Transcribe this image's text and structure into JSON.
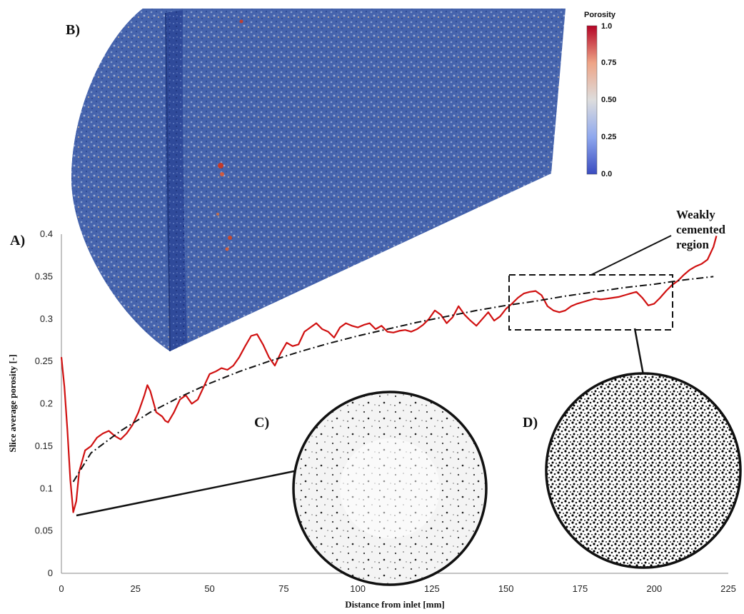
{
  "chart_data": {
    "type": "line",
    "xlabel": "Distance from inlet [mm]",
    "ylabel": "Slice average porosity [-]",
    "xlim": [
      0,
      225
    ],
    "ylim": [
      0,
      0.4
    ],
    "xticks": [
      "0",
      "25",
      "50",
      "75",
      "100",
      "125",
      "150",
      "175",
      "200",
      "225"
    ],
    "yticks": [
      "0",
      "0.05",
      "0.1",
      "0.15",
      "0.2",
      "0.25",
      "0.3",
      "0.35",
      "0.4"
    ],
    "series": [
      {
        "style": "solid",
        "color": "#d01010",
        "x": [
          0,
          1,
          2,
          3,
          4,
          5,
          6,
          8,
          10,
          12,
          14,
          16,
          18,
          20,
          22,
          24,
          26,
          28,
          29,
          30,
          32,
          34,
          35,
          36,
          38,
          40,
          42,
          44,
          46,
          48,
          50,
          52,
          54,
          56,
          58,
          60,
          62,
          64,
          66,
          68,
          70,
          72,
          74,
          76,
          78,
          80,
          82,
          84,
          86,
          88,
          90,
          92,
          94,
          96,
          98,
          100,
          102,
          104,
          106,
          108,
          110,
          112,
          114,
          116,
          118,
          120,
          122,
          124,
          126,
          128,
          130,
          132,
          134,
          136,
          138,
          140,
          142,
          144,
          146,
          148,
          150,
          152,
          154,
          156,
          158,
          160,
          162,
          164,
          166,
          168,
          170,
          172,
          174,
          176,
          178,
          180,
          182,
          184,
          186,
          188,
          190,
          192,
          194,
          196,
          198,
          200,
          202,
          204,
          206,
          208,
          210,
          212,
          214,
          216,
          218,
          220,
          221
        ],
        "y": [
          0.255,
          0.22,
          0.17,
          0.11,
          0.072,
          0.085,
          0.12,
          0.145,
          0.15,
          0.16,
          0.165,
          0.168,
          0.162,
          0.158,
          0.165,
          0.175,
          0.19,
          0.21,
          0.222,
          0.215,
          0.19,
          0.185,
          0.18,
          0.178,
          0.19,
          0.205,
          0.21,
          0.2,
          0.205,
          0.22,
          0.235,
          0.238,
          0.242,
          0.24,
          0.245,
          0.255,
          0.268,
          0.28,
          0.282,
          0.27,
          0.255,
          0.245,
          0.26,
          0.272,
          0.268,
          0.27,
          0.285,
          0.29,
          0.295,
          0.288,
          0.285,
          0.278,
          0.29,
          0.295,
          0.292,
          0.29,
          0.293,
          0.295,
          0.288,
          0.292,
          0.285,
          0.284,
          0.286,
          0.287,
          0.285,
          0.288,
          0.293,
          0.3,
          0.31,
          0.305,
          0.295,
          0.302,
          0.315,
          0.305,
          0.298,
          0.292,
          0.3,
          0.308,
          0.298,
          0.303,
          0.312,
          0.318,
          0.325,
          0.33,
          0.332,
          0.333,
          0.328,
          0.315,
          0.31,
          0.308,
          0.31,
          0.315,
          0.318,
          0.32,
          0.322,
          0.324,
          0.323,
          0.324,
          0.325,
          0.326,
          0.328,
          0.33,
          0.332,
          0.325,
          0.316,
          0.318,
          0.325,
          0.333,
          0.34,
          0.345,
          0.352,
          0.358,
          0.362,
          0.365,
          0.37,
          0.385,
          0.398
        ]
      },
      {
        "style": "dash-dot",
        "color": "#111111",
        "x": [
          4,
          10,
          20,
          30,
          40,
          50,
          60,
          70,
          80,
          90,
          100,
          110,
          120,
          130,
          140,
          150,
          160,
          170,
          180,
          190,
          200,
          210,
          220
        ],
        "y": [
          0.108,
          0.142,
          0.168,
          0.19,
          0.208,
          0.224,
          0.238,
          0.25,
          0.261,
          0.271,
          0.28,
          0.288,
          0.296,
          0.303,
          0.31,
          0.316,
          0.321,
          0.327,
          0.332,
          0.337,
          0.341,
          0.346,
          0.35
        ]
      }
    ]
  },
  "labels": {
    "panel_a": "A)",
    "panel_b": "B)",
    "panel_c": "C)",
    "panel_d": "D)",
    "annotation": [
      "Weakly",
      "cemented",
      "region"
    ]
  },
  "colorbar": {
    "title": "Porosity",
    "ticks": [
      "1.0",
      "0.75",
      "0.50",
      "0.25",
      "0.0"
    ],
    "colors": [
      "#3a4cc0",
      "#b9c9ee",
      "#dcdcdc",
      "#eeb49a",
      "#b40426"
    ]
  }
}
